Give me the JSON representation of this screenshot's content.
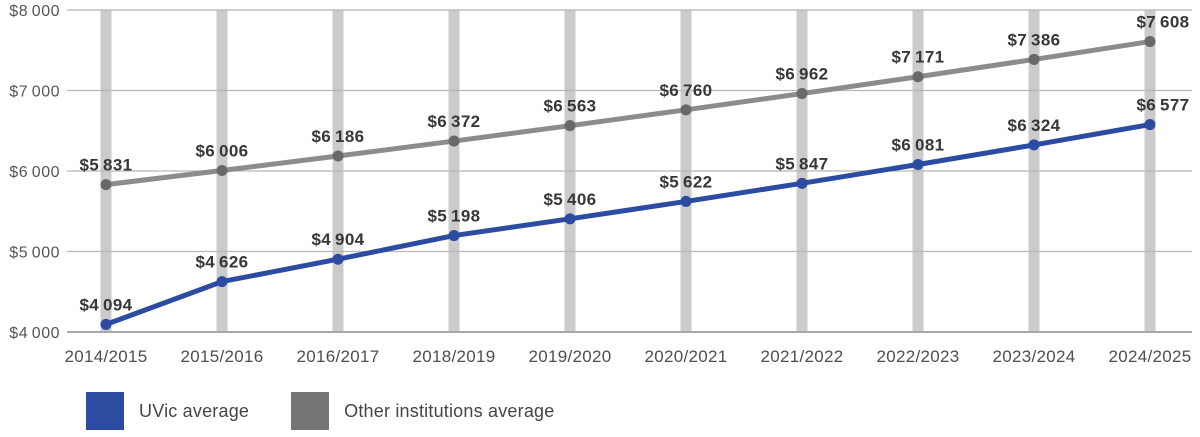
{
  "chart_data": {
    "type": "line",
    "title": "",
    "xlabel": "",
    "ylabel": "",
    "categories": [
      "2014/2015",
      "2015/2016",
      "2016/2017",
      "2018/2019",
      "2019/2020",
      "2020/2021",
      "2021/2022",
      "2022/2023",
      "2023/2024",
      "2024/2025"
    ],
    "series": [
      {
        "name": "UVic average",
        "values": [
          4094,
          4626,
          4904,
          5198,
          5406,
          5622,
          5847,
          6081,
          6324,
          6577
        ],
        "labels": [
          "$4 094",
          "$4 626",
          "$4 904",
          "$5 198",
          "$5 406",
          "$5 622",
          "$5 847",
          "$6 081",
          "$6 324",
          "$6 577"
        ],
        "line_color": "#2b4ca0",
        "marker_color": "#2b4ca0",
        "swatch_color": "#2b4ca0"
      },
      {
        "name": "Other institutions average",
        "values": [
          5831,
          6006,
          6186,
          6372,
          6563,
          6760,
          6962,
          7171,
          7386,
          7608
        ],
        "labels": [
          "$5 831",
          "$6 006",
          "$6 186",
          "$6 372",
          "$6 563",
          "$6 760",
          "$6 962",
          "$7 171",
          "$7 386",
          "$7 608"
        ],
        "line_color": "#8c8c8c",
        "marker_color": "#686868",
        "swatch_color": "#757575"
      }
    ],
    "ylim": [
      4000,
      8000
    ],
    "y_ticks": [
      {
        "value": 8000,
        "label": "$8 000"
      },
      {
        "value": 7000,
        "label": "$7 000"
      },
      {
        "value": 6000,
        "label": "$6 000"
      },
      {
        "value": 5000,
        "label": "$5 000"
      },
      {
        "value": 4000,
        "label": "$4 000"
      }
    ],
    "grid": {
      "horizontal_gridlines": true,
      "vertical_category_bands": true,
      "band_color": "#cbcbcb",
      "grid_color": "#b8b8b8",
      "axis_line_color": "#a9a9a9"
    },
    "legend_position": "bottom-left"
  }
}
